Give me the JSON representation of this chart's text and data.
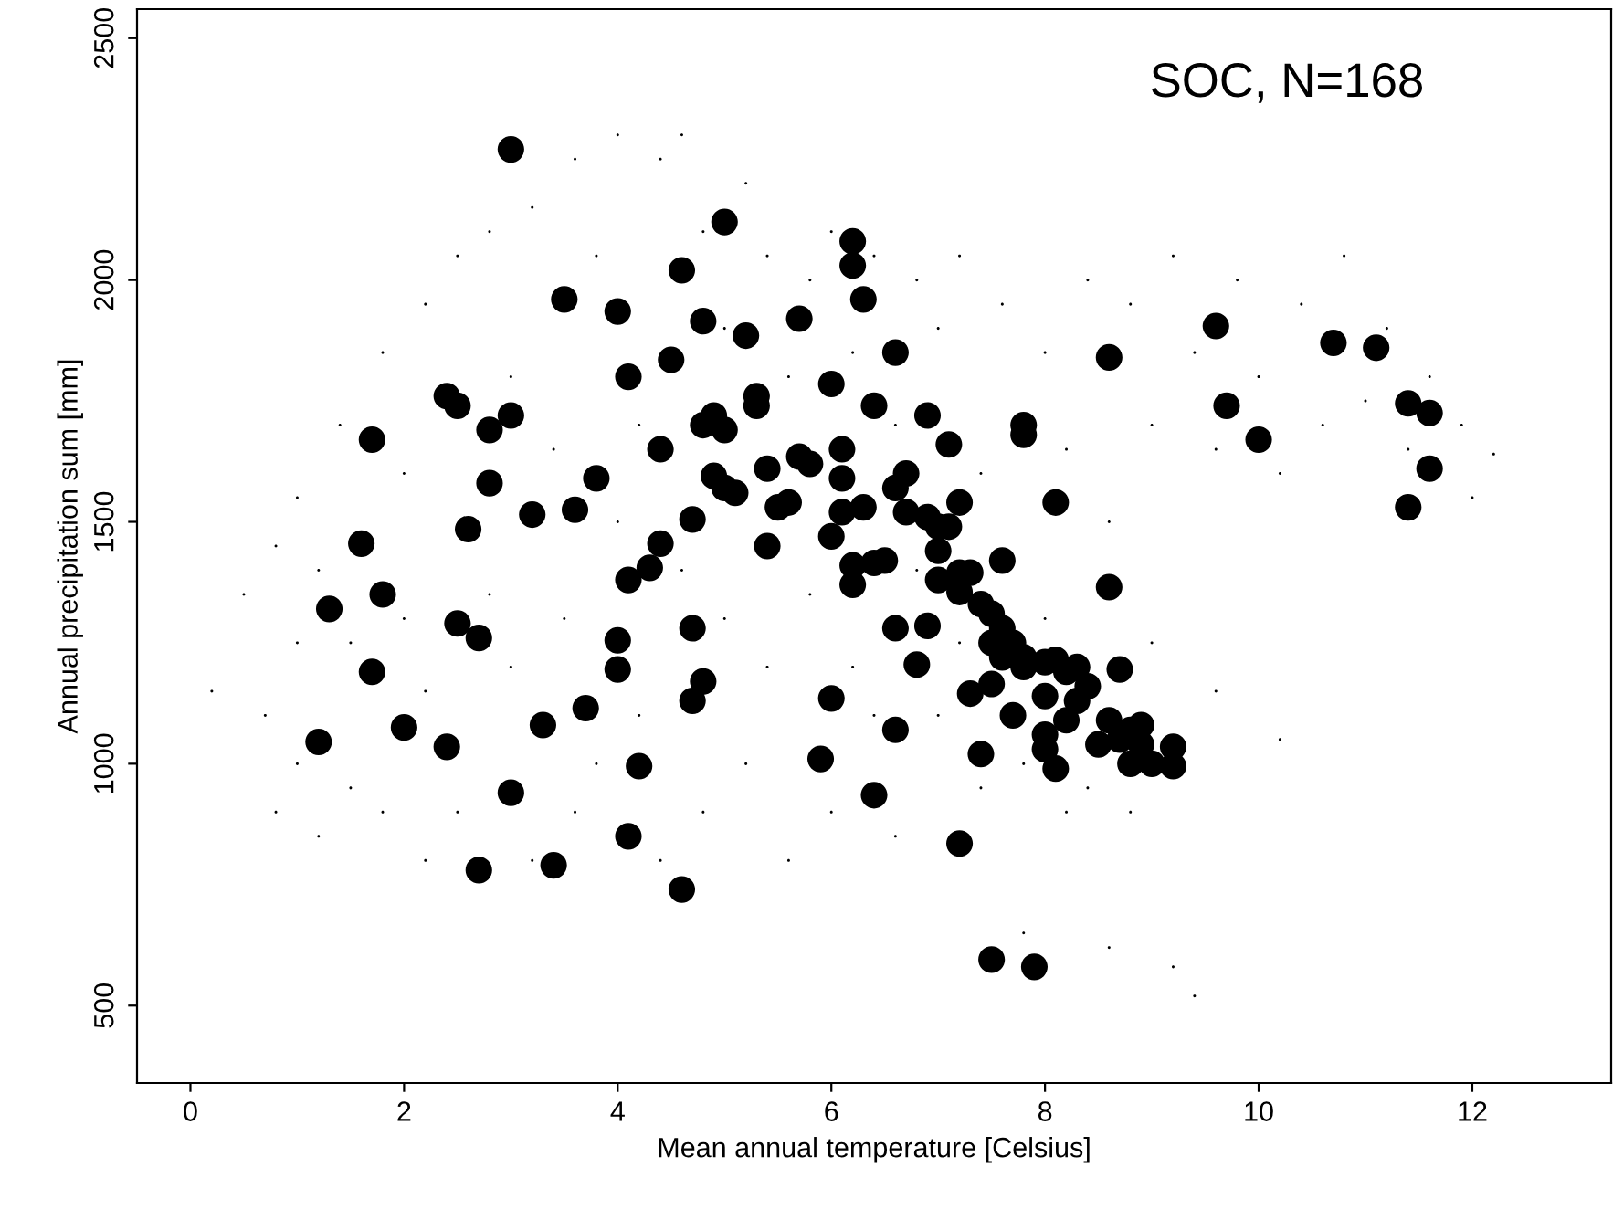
{
  "chart_data": {
    "type": "scatter",
    "xlabel": "Mean annual temperature [Celsius]",
    "ylabel": "Annual precipitation sum [mm]",
    "annotations": [
      "SOC, N=168"
    ],
    "xlim": [
      -0.5,
      13.3
    ],
    "ylim": [
      340,
      2560
    ],
    "xticks": [
      0,
      2,
      4,
      6,
      8,
      10,
      12
    ],
    "yticks": [
      500,
      1000,
      1500,
      2000,
      2500
    ],
    "grid": false,
    "legend": false,
    "marker": "circle",
    "series": [
      {
        "color": "#000000",
        "x": [
          0.2,
          0.5,
          0.7,
          0.8,
          0.8,
          1.0,
          1.0,
          1.0,
          1.2,
          1.2,
          1.4,
          1.5,
          1.5,
          1.8,
          1.8,
          2.0,
          2.0,
          2.2,
          2.2,
          2.2,
          2.5,
          2.5,
          2.8,
          2.8,
          3.0,
          3.0,
          3.2,
          3.2,
          3.4,
          3.5,
          3.6,
          3.6,
          3.8,
          3.8,
          4.0,
          4.0,
          4.2,
          4.2,
          4.4,
          4.4,
          4.6,
          4.6,
          4.8,
          4.8,
          5.0,
          5.0,
          5.2,
          5.2,
          5.4,
          5.4,
          5.6,
          5.6,
          5.8,
          5.8,
          6.0,
          6.0,
          6.2,
          6.2,
          6.4,
          6.4,
          6.6,
          6.6,
          6.8,
          6.8,
          7.0,
          7.0,
          7.2,
          7.2,
          7.4,
          7.4,
          7.6,
          7.8,
          7.8,
          8.0,
          8.0,
          8.2,
          8.2,
          8.4,
          8.4,
          8.6,
          8.6,
          8.8,
          8.8,
          9.0,
          9.0,
          9.2,
          9.2,
          9.4,
          9.4,
          9.6,
          9.6,
          9.8,
          10.0,
          10.2,
          10.2,
          10.4,
          10.6,
          10.8,
          11.0,
          11.2,
          11.4,
          11.6,
          11.9,
          12.2,
          12.0
        ],
        "values": [
          1150,
          1350,
          1100,
          900,
          1450,
          1000,
          1250,
          1550,
          850,
          1400,
          1700,
          950,
          1250,
          1850,
          900,
          1600,
          1300,
          800,
          1950,
          1150,
          2050,
          900,
          2100,
          1350,
          1200,
          1800,
          2150,
          800,
          1650,
          1300,
          2250,
          900,
          1000,
          2050,
          2300,
          1500,
          1100,
          1700,
          2250,
          800,
          2300,
          1400,
          900,
          2100,
          1300,
          1900,
          1000,
          2200,
          1200,
          2050,
          1800,
          800,
          2000,
          1350,
          900,
          2100,
          1200,
          1850,
          1100,
          2050,
          1700,
          850,
          2000,
          1400,
          1900,
          1100,
          2050,
          1250,
          1600,
          950,
          1950,
          1000,
          650,
          1850,
          1300,
          900,
          1650,
          2000,
          950,
          1500,
          620,
          1950,
          900,
          1250,
          1700,
          2050,
          580,
          1850,
          520,
          1650,
          1150,
          2000,
          1800,
          1600,
          1050,
          1950,
          1700,
          2050,
          1750,
          1900,
          1650,
          1800,
          1700,
          1640,
          1550
        ]
      },
      {
        "color": "#000000",
        "x": [
          1.2,
          1.3,
          1.6,
          1.7,
          1.7,
          1.8,
          2.0,
          2.4,
          2.5,
          2.4,
          2.5,
          2.6,
          2.7,
          2.7,
          2.8,
          2.8,
          3.0,
          3.0,
          3.0,
          3.2,
          3.3,
          3.4,
          3.5,
          3.6,
          3.7,
          3.8,
          4.0,
          4.0,
          4.0,
          4.1,
          4.1,
          4.1,
          4.2,
          4.3,
          4.4,
          4.4,
          4.5,
          4.6,
          4.6,
          4.7,
          4.7,
          4.7,
          4.8,
          4.8,
          4.8,
          4.9,
          4.9,
          5.0,
          5.0,
          5.0,
          5.1,
          5.2,
          5.3,
          5.3,
          5.4,
          5.4,
          5.5,
          5.6,
          5.7,
          5.7,
          5.8,
          5.9,
          6.0,
          6.0,
          6.0,
          6.1,
          6.1,
          6.1,
          6.2,
          6.2,
          6.2,
          6.2,
          6.3,
          6.3,
          6.4,
          6.4,
          6.4,
          6.5,
          6.6,
          6.6,
          6.6,
          6.6,
          6.7,
          6.7,
          6.8,
          6.9,
          6.9,
          6.9,
          7.0,
          7.0,
          7.0,
          7.1,
          7.1,
          7.2,
          7.2,
          7.2,
          7.2,
          7.3,
          7.4,
          7.4,
          7.5,
          7.5,
          7.5,
          7.5,
          7.6,
          7.6,
          7.6,
          7.7,
          7.7,
          7.8,
          7.8,
          7.8,
          7.9,
          8.0,
          8.0,
          8.0,
          8.0,
          8.1,
          8.1,
          8.1,
          8.2,
          8.2,
          8.3,
          8.4,
          8.5,
          8.6,
          8.6,
          8.6,
          8.7,
          8.7,
          8.8,
          8.8,
          8.9,
          9.0,
          9.2,
          9.2,
          9.6,
          9.7,
          10.0,
          10.7,
          11.1,
          11.4,
          11.4,
          11.6,
          11.6,
          8.3,
          8.9,
          7.3,
          7.8
        ],
        "values": [
          1045,
          1320,
          1455,
          1670,
          1190,
          1350,
          1075,
          1760,
          1740,
          1035,
          1290,
          1485,
          1260,
          780,
          1690,
          1580,
          2270,
          1720,
          940,
          1515,
          1080,
          790,
          1960,
          1525,
          1115,
          1590,
          1935,
          1255,
          1195,
          1800,
          1380,
          850,
          995,
          1405,
          1455,
          1650,
          1835,
          2020,
          740,
          1505,
          1280,
          1130,
          1915,
          1700,
          1170,
          1720,
          1595,
          2120,
          1690,
          1570,
          1560,
          1885,
          1760,
          1740,
          1450,
          1610,
          1530,
          1540,
          1920,
          1635,
          1620,
          1010,
          1785,
          1470,
          1135,
          1650,
          1590,
          1520,
          2080,
          2030,
          1410,
          1370,
          1960,
          1530,
          1740,
          1415,
          935,
          1420,
          1850,
          1570,
          1280,
          1070,
          1600,
          1520,
          1205,
          1720,
          1510,
          1285,
          1490,
          1440,
          1380,
          1660,
          1490,
          1540,
          1395,
          1355,
          835,
          1145,
          1330,
          1020,
          1310,
          1250,
          1165,
          595,
          1420,
          1280,
          1220,
          1250,
          1100,
          1700,
          1680,
          1200,
          580,
          1210,
          1140,
          1060,
          1030,
          1540,
          1215,
          990,
          1190,
          1090,
          1200,
          1160,
          1040,
          1840,
          1365,
          1090,
          1195,
          1050,
          1070,
          1000,
          1040,
          1000,
          1035,
          995,
          1905,
          1740,
          1670,
          1870,
          1860,
          1745,
          1530,
          1725,
          1610,
          1130,
          1080,
          1395,
          1220
        ]
      }
    ]
  }
}
